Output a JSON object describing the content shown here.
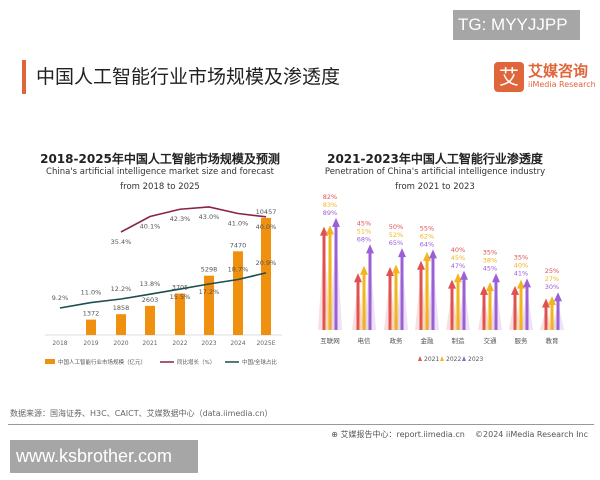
{
  "watermarks": {
    "top": "TG: MYYJJPP",
    "bottom": "www.ksbrother.com"
  },
  "header": {
    "title": "中国人工智能行业市场规模及渗透度",
    "logo_glyph": "艾",
    "logo_cn": "艾媒咨询",
    "logo_en": "iiMedia Research"
  },
  "footer": {
    "source": "数据来源：国海证券、H3C、CAICT、艾媒数据中心（data.iimedia.cn）",
    "report": "艾媒报告中心：report.iimedia.cn",
    "copyright": "©2024 iiMedia Research Inc"
  },
  "colors": {
    "bar": "#f0900f",
    "growth": "#8b2346",
    "share": "#1f4e4e",
    "y2021": "#e05252",
    "y2022": "#f2b520",
    "y2023": "#9b5fd6",
    "accent": "#e0653a"
  },
  "chart_data": [
    {
      "type": "bar",
      "title": "2018-2025年中国人工智能市场规模及预测",
      "subtitle1": "China's artificial intelligence market size and forecast",
      "subtitle2": "from 2018 to 2025",
      "categories": [
        "2018",
        "2019",
        "2020",
        "2021",
        "2022",
        "2023",
        "2024",
        "2025E"
      ],
      "series": [
        {
          "name": "中国人工智能行业市场规模（亿元）",
          "kind": "bar",
          "values": [
            null,
            1372,
            1858,
            2603,
            3705,
            5298,
            7470,
            10457
          ]
        },
        {
          "name": "同比增长（%）",
          "kind": "line",
          "values": [
            null,
            null,
            35.4,
            40.1,
            42.3,
            43.0,
            41.0,
            40.0
          ]
        },
        {
          "name": "中国/全球占比",
          "kind": "line",
          "values": [
            9.2,
            11.0,
            12.2,
            13.8,
            15.5,
            17.2,
            18.7,
            20.9
          ]
        }
      ]
    },
    {
      "type": "bar",
      "title": "2021-2023年中国人工智能行业渗透度",
      "subtitle1": "Penetration of China's artificial intelligence industry",
      "subtitle2": "from 2021 to 2023",
      "categories": [
        "互联网",
        "电信",
        "政务",
        "金融",
        "制造",
        "交通",
        "服务",
        "教育"
      ],
      "series": [
        {
          "name": "2021",
          "values": [
            82,
            45,
            50,
            55,
            40,
            35,
            35,
            25
          ]
        },
        {
          "name": "2022",
          "values": [
            83,
            51,
            52,
            62,
            45,
            38,
            40,
            27
          ]
        },
        {
          "name": "2023",
          "values": [
            89,
            68,
            65,
            64,
            47,
            45,
            41,
            30
          ]
        }
      ]
    }
  ]
}
